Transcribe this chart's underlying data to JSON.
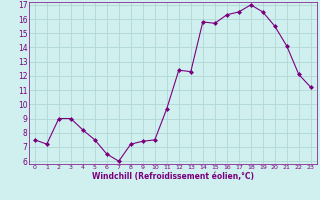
{
  "x": [
    0,
    1,
    2,
    3,
    4,
    5,
    6,
    7,
    8,
    9,
    10,
    11,
    12,
    13,
    14,
    15,
    16,
    17,
    18,
    19,
    20,
    21,
    22,
    23
  ],
  "y": [
    7.5,
    7.2,
    9.0,
    9.0,
    8.2,
    7.5,
    6.5,
    6.0,
    7.2,
    7.4,
    7.5,
    9.7,
    12.4,
    12.3,
    15.8,
    15.7,
    16.3,
    16.5,
    17.0,
    16.5,
    15.5,
    14.1,
    12.1,
    11.2
  ],
  "line_color": "#7b0080",
  "marker": "D",
  "marker_size": 2,
  "bg_color": "#cff0ee",
  "grid_color": "#b0d8d5",
  "xlabel": "Windchill (Refroidissement éolien,°C)",
  "xlabel_color": "#7b0080",
  "tick_color": "#7b0080",
  "ylim": [
    6,
    17
  ],
  "yticks": [
    6,
    7,
    8,
    9,
    10,
    11,
    12,
    13,
    14,
    15,
    16,
    17
  ],
  "xticks": [
    0,
    1,
    2,
    3,
    4,
    5,
    6,
    7,
    8,
    9,
    10,
    11,
    12,
    13,
    14,
    15,
    16,
    17,
    18,
    19,
    20,
    21,
    22,
    23
  ],
  "xlim": [
    0,
    23
  ]
}
